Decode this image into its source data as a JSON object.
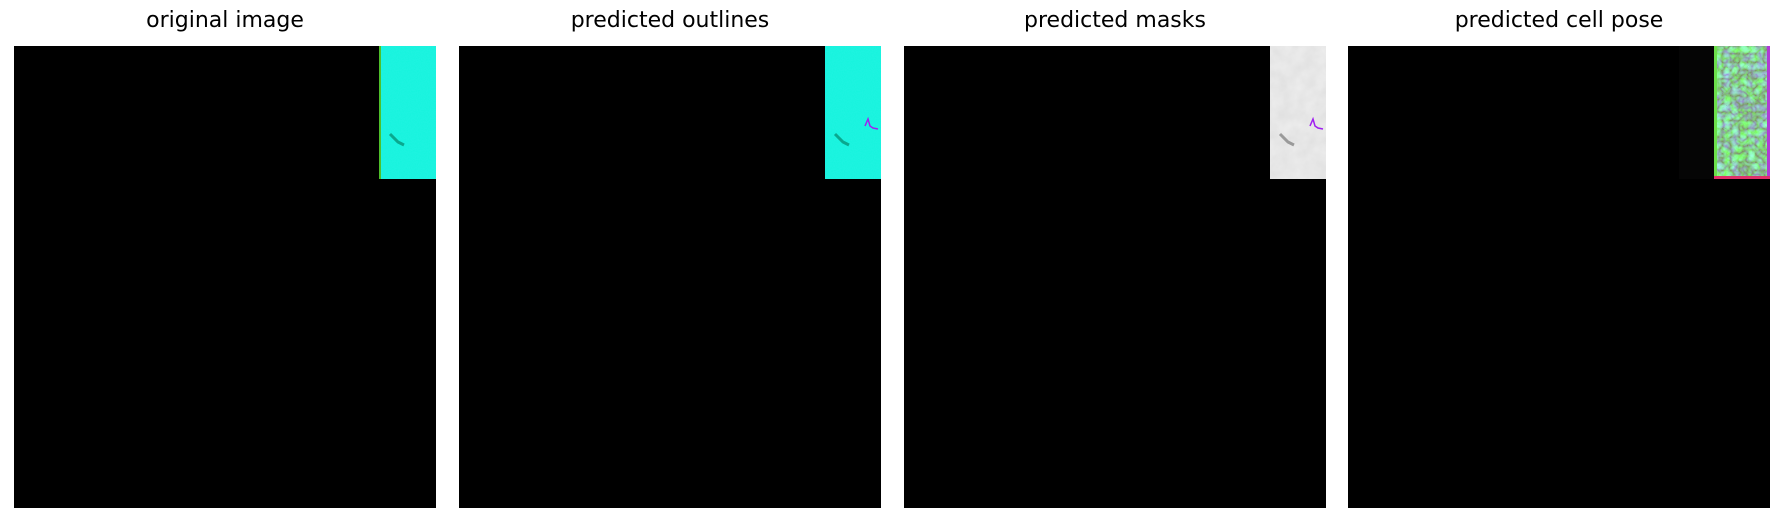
{
  "figure": {
    "panels": [
      {
        "title": "original image"
      },
      {
        "title": "predicted outlines"
      },
      {
        "title": "predicted masks"
      },
      {
        "title": "predicted cell pose"
      }
    ]
  },
  "colors": {
    "background": "#000000",
    "cyan_region": "#11f5dc",
    "mask_region": "#efefef",
    "outline": "#a020f0",
    "flow_green": "#2ee04a",
    "flow_magenta": "#b03ad6"
  }
}
